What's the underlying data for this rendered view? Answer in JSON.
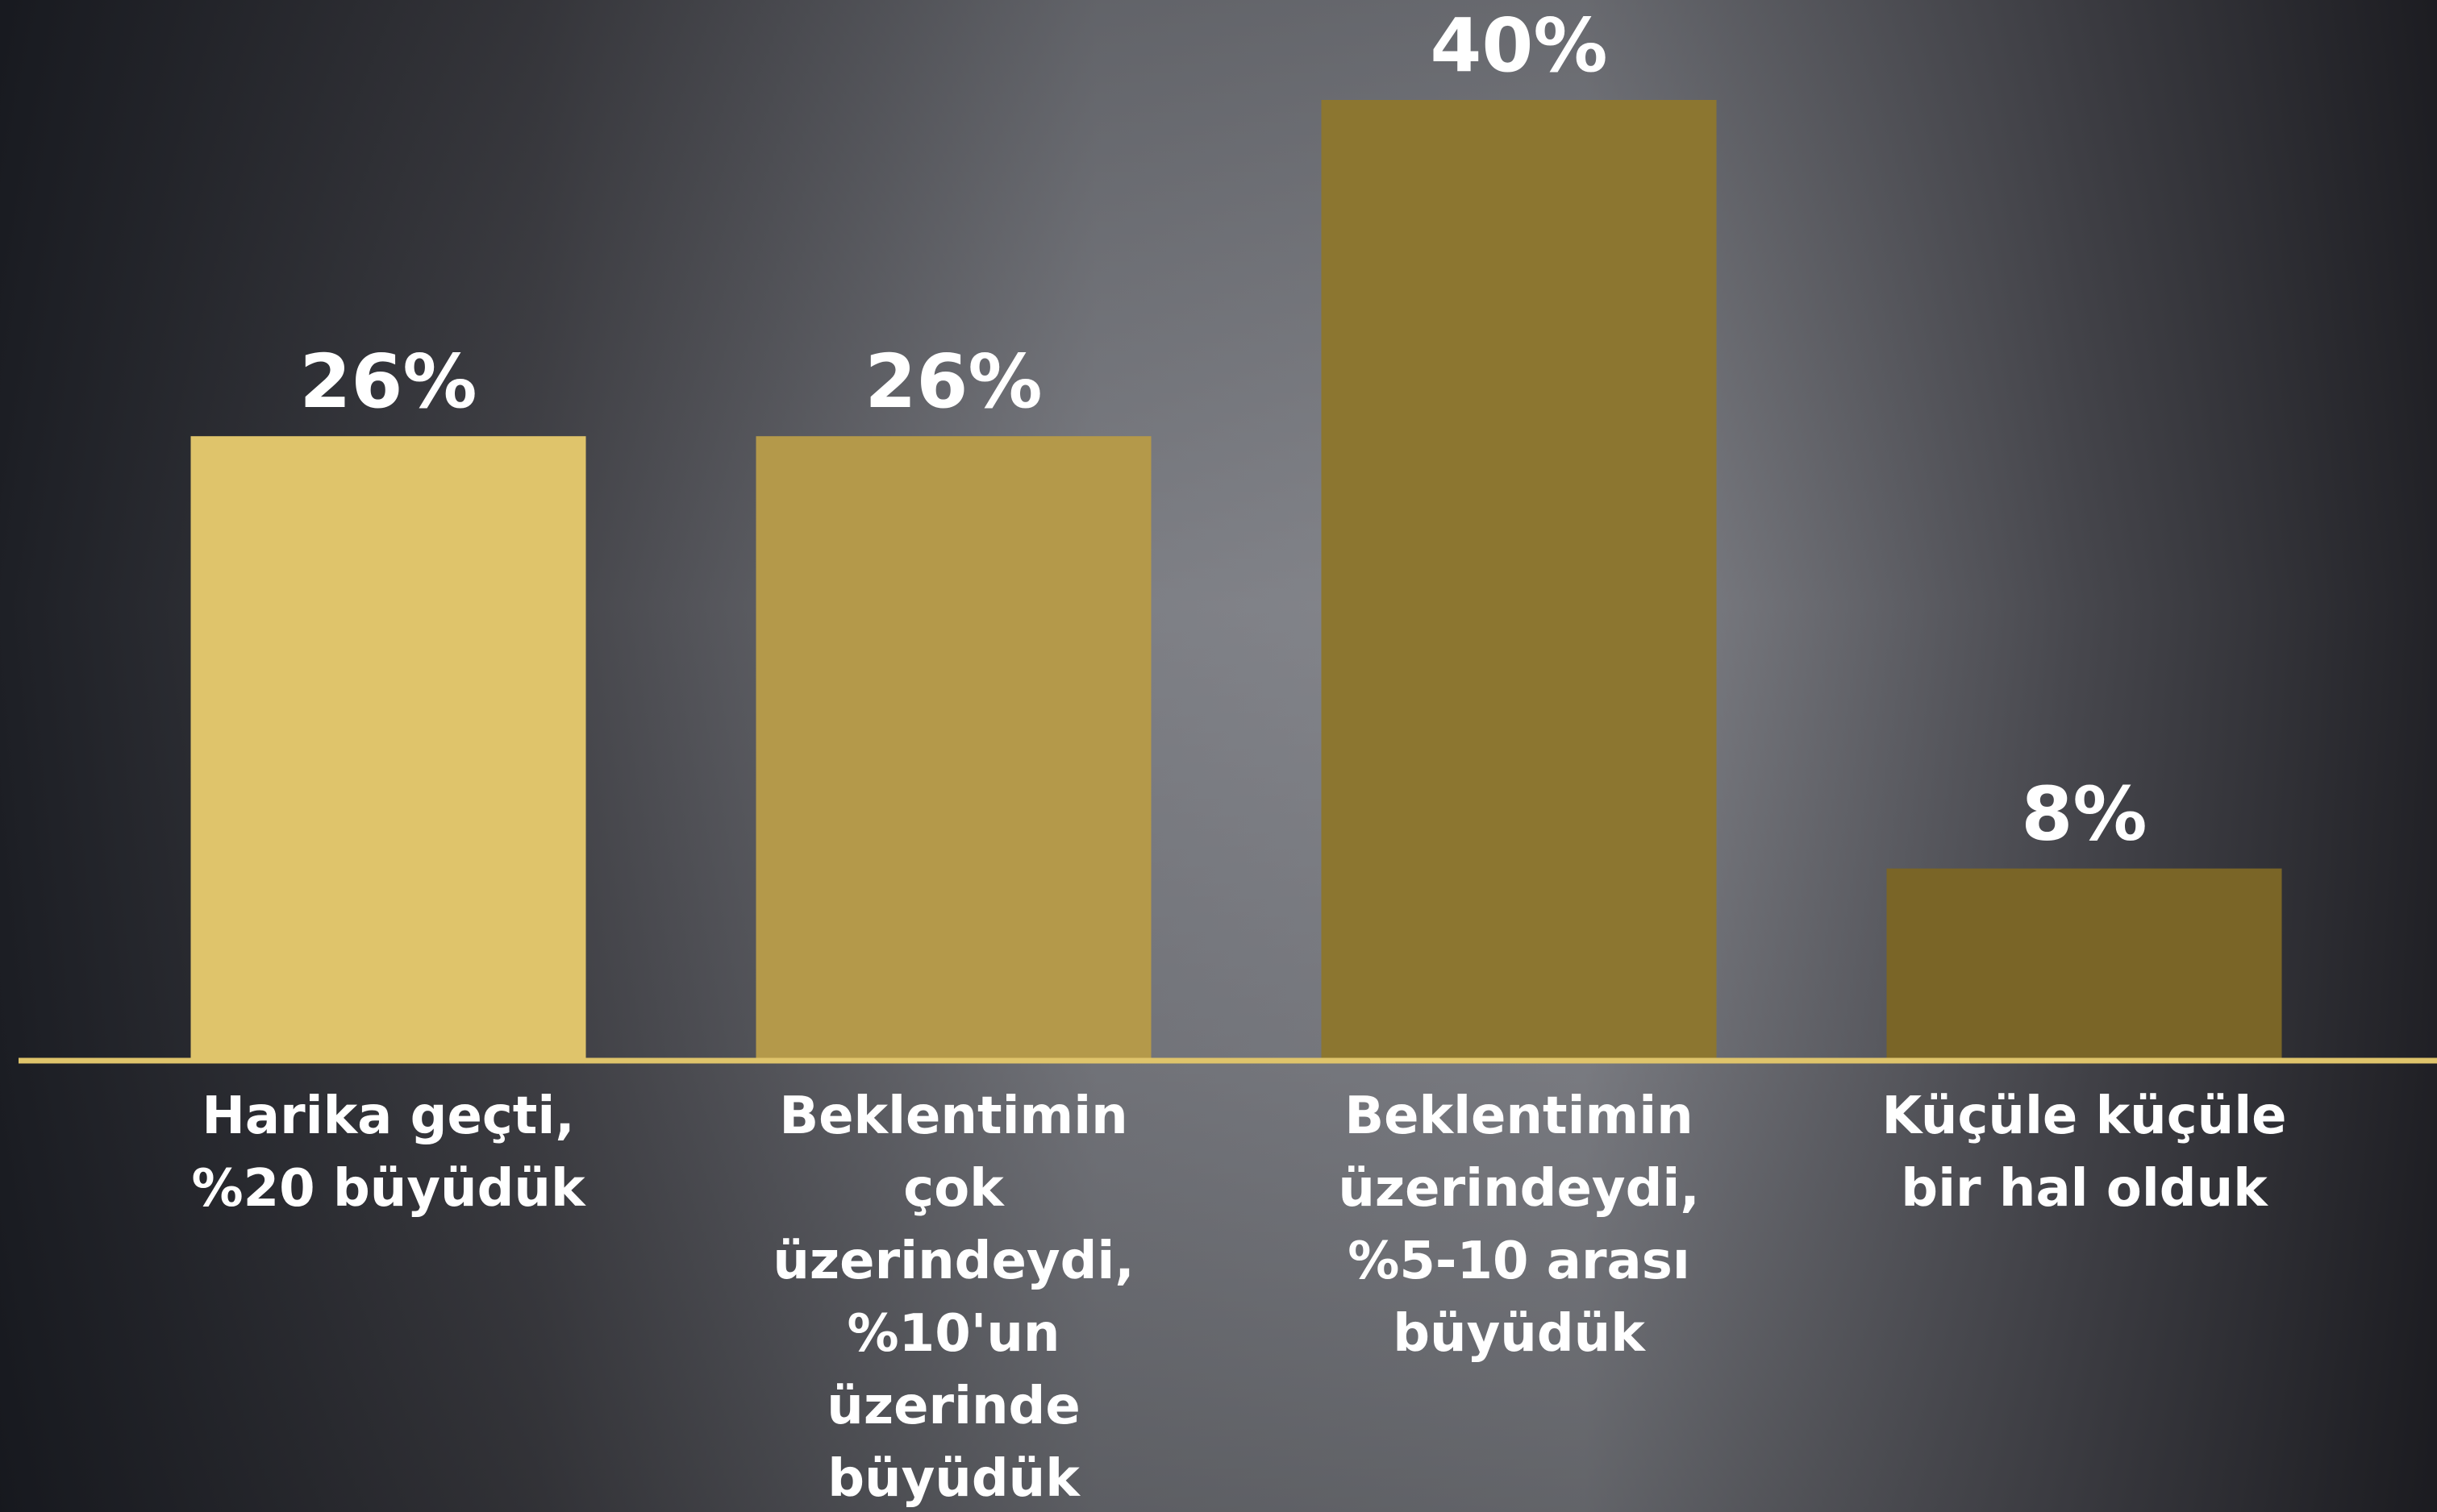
{
  "chart_data": {
    "type": "bar",
    "categories": [
      "Harika geçti, %20 büyüdük",
      "Beklentimin çok üzerindeydi, %10'un üzerinde büyüdük",
      "Beklentimin üzerindeydi, %5-10 arası büyüdük",
      "Küçüle küçüle bir hal olduk"
    ],
    "values": [
      26,
      26,
      40,
      8
    ],
    "value_labels": [
      "26%",
      "26%",
      "40%",
      "8%"
    ],
    "colors": [
      "#dfc46b",
      "#b4994a",
      "#8c7630",
      "#7a6527"
    ],
    "axis_color": "#dfc46b"
  }
}
